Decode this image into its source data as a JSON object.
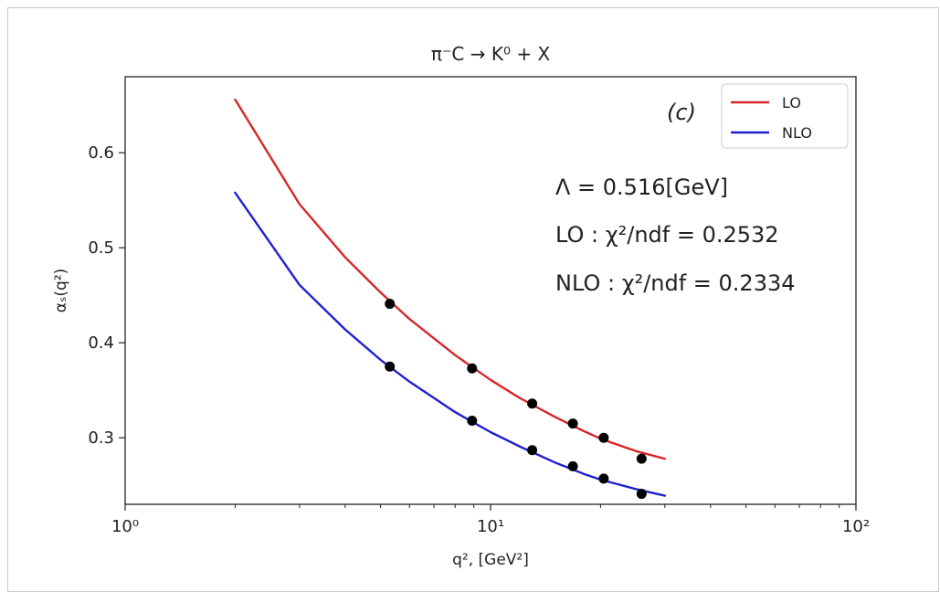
{
  "chart_data": {
    "type": "line",
    "title": "π⁻C → K⁰ + X",
    "xlabel": "q², [GeV²]",
    "ylabel": "αₛ(q²)",
    "xscale": "log",
    "xlim": [
      1,
      100
    ],
    "ylim": [
      0.23,
      0.68
    ],
    "x_ticks": [
      {
        "value": 1,
        "label": "10⁰"
      },
      {
        "value": 10,
        "label": "10¹"
      },
      {
        "value": 100,
        "label": "10²"
      }
    ],
    "y_ticks": [
      {
        "value": 0.3,
        "label": "0.3"
      },
      {
        "value": 0.4,
        "label": "0.4"
      },
      {
        "value": 0.5,
        "label": "0.5"
      },
      {
        "value": 0.6,
        "label": "0.6"
      }
    ],
    "grid": false,
    "legend_position": "top-right",
    "panel_label": "(c)",
    "annotations": [
      "Λ = 0.516[GeV]",
      "LO : χ²/ndf = 0.2532",
      "NLO : χ²/ndf = 0.2334"
    ],
    "series": [
      {
        "name": "LO",
        "color": "#d62728",
        "x": [
          2,
          3,
          4,
          5,
          6,
          8,
          10,
          12,
          15,
          18,
          20,
          25,
          30
        ],
        "y": [
          0.656,
          0.546,
          0.49,
          0.453,
          0.425,
          0.387,
          0.361,
          0.342,
          0.322,
          0.307,
          0.299,
          0.286,
          0.278
        ]
      },
      {
        "name": "NLO",
        "color": "#1f1fd0",
        "x": [
          2,
          3,
          4,
          5,
          6,
          8,
          10,
          12,
          15,
          18,
          20,
          25,
          30
        ],
        "y": [
          0.558,
          0.461,
          0.414,
          0.382,
          0.359,
          0.327,
          0.306,
          0.291,
          0.274,
          0.262,
          0.256,
          0.246,
          0.239
        ]
      },
      {
        "name": "",
        "color": "#000000",
        "points": [
          {
            "x": 5.3,
            "y": 0.441
          },
          {
            "x": 5.3,
            "y": 0.375
          },
          {
            "x": 8.9,
            "y": 0.373
          },
          {
            "x": 8.9,
            "y": 0.318
          },
          {
            "x": 13.0,
            "y": 0.336
          },
          {
            "x": 13.0,
            "y": 0.287
          },
          {
            "x": 16.8,
            "y": 0.315
          },
          {
            "x": 16.8,
            "y": 0.27
          },
          {
            "x": 20.4,
            "y": 0.3
          },
          {
            "x": 20.4,
            "y": 0.257
          },
          {
            "x": 25.9,
            "y": 0.278
          },
          {
            "x": 25.9,
            "y": 0.241
          }
        ]
      }
    ]
  }
}
